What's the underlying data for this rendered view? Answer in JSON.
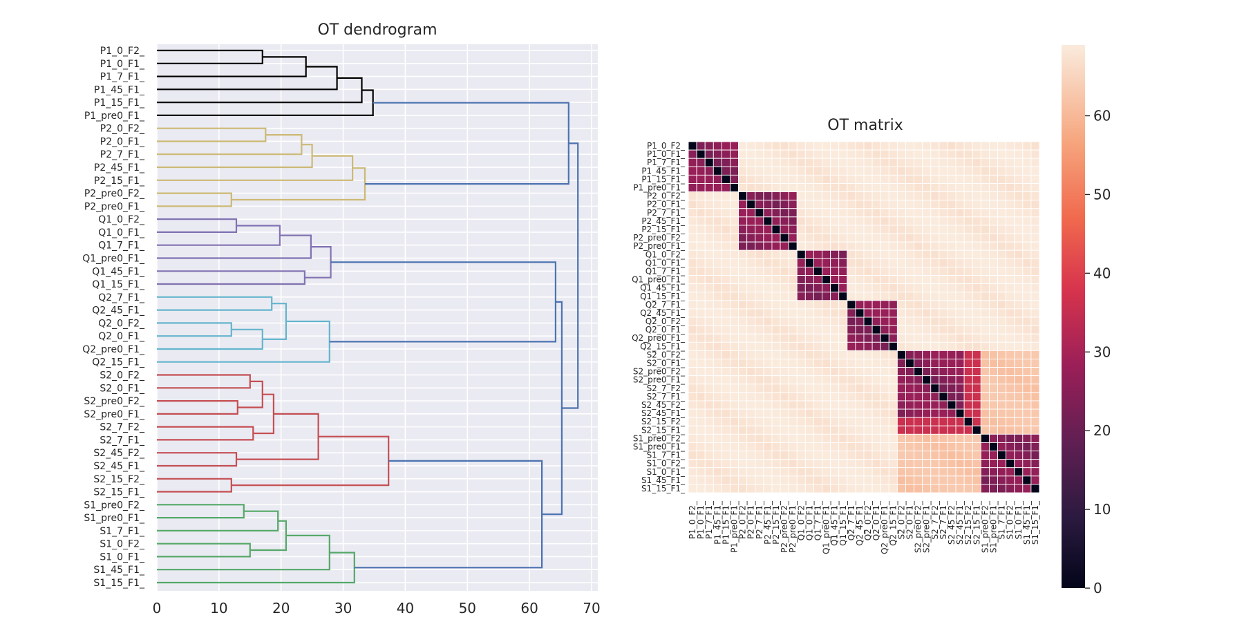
{
  "chart_data": [
    {
      "type": "dendrogram",
      "title": "OT dendrogram",
      "orientation": "right",
      "xlim": [
        0,
        71
      ],
      "xticks": [
        0,
        10,
        20,
        30,
        40,
        50,
        60,
        70
      ],
      "grid": true,
      "leaves": [
        "P1_0_F2_",
        "P1_0_F1_",
        "P1_7_F1_",
        "P1_45_F1_",
        "P1_15_F1_",
        "P1_pre0_F1_",
        "P2_0_F2_",
        "P2_0_F1_",
        "P2_7_F1_",
        "P2_45_F1_",
        "P2_15_F1_",
        "P2_pre0_F2_",
        "P2_pre0_F1_",
        "Q1_0_F2_",
        "Q1_0_F1_",
        "Q1_7_F1_",
        "Q1_pre0_F1_",
        "Q1_45_F1_",
        "Q1_15_F1_",
        "Q2_7_F1_",
        "Q2_45_F1_",
        "Q2_0_F2_",
        "Q2_0_F1_",
        "Q2_pre0_F1_",
        "Q2_15_F1_",
        "S2_0_F2_",
        "S2_0_F1_",
        "S2_pre0_F2_",
        "S2_pre0_F1_",
        "S2_7_F2_",
        "S2_7_F1_",
        "S2_45_F2_",
        "S2_45_F1_",
        "S2_15_F2_",
        "S2_15_F1_",
        "S1_pre0_F2_",
        "S1_pre0_F1_",
        "S1_7_F1_",
        "S1_0_F2_",
        "S1_0_F1_",
        "S1_45_F1_",
        "S1_15_F1_"
      ],
      "cluster_colors": [
        "#000000",
        "#ccb974",
        "#8172b2",
        "#64b5cd",
        "#c44e52",
        "#55a868",
        "#4c72b0"
      ],
      "merges": [
        {
          "a": 0,
          "b": 1,
          "h": 17.0,
          "c": 0
        },
        {
          "a": "m0",
          "b": 2,
          "h": 24.0,
          "c": 0
        },
        {
          "a": "m1",
          "b": 3,
          "h": 29.0,
          "c": 0
        },
        {
          "a": "m2",
          "b": 4,
          "h": 33.0,
          "c": 0
        },
        {
          "a": "m3",
          "b": 5,
          "h": 34.8,
          "c": 0
        },
        {
          "a": 11,
          "b": 12,
          "h": 12.0,
          "c": 1
        },
        {
          "a": 6,
          "b": 7,
          "h": 17.5,
          "c": 1
        },
        {
          "a": "m6",
          "b": 8,
          "h": 23.3,
          "c": 1
        },
        {
          "a": "m7",
          "b": 9,
          "h": 25.0,
          "c": 1
        },
        {
          "a": "m8",
          "b": 10,
          "h": 31.5,
          "c": 1
        },
        {
          "a": "m9",
          "b": "m5",
          "h": 33.5,
          "c": 1
        },
        {
          "a": 13,
          "b": 14,
          "h": 12.8,
          "c": 2
        },
        {
          "a": "m11",
          "b": 15,
          "h": 19.8,
          "c": 2
        },
        {
          "a": "m12",
          "b": 16,
          "h": 24.8,
          "c": 2
        },
        {
          "a": 17,
          "b": 18,
          "h": 23.8,
          "c": 2
        },
        {
          "a": "m13",
          "b": "m14",
          "h": 28.0,
          "c": 2
        },
        {
          "a": 21,
          "b": 22,
          "h": 12.0,
          "c": 3
        },
        {
          "a": "m16",
          "b": 23,
          "h": 17.0,
          "c": 3
        },
        {
          "a": 19,
          "b": 20,
          "h": 18.5,
          "c": 3
        },
        {
          "a": "m18",
          "b": "m17",
          "h": 20.8,
          "c": 3
        },
        {
          "a": "m19",
          "b": 24,
          "h": 27.8,
          "c": 3
        },
        {
          "a": 25,
          "b": 26,
          "h": 15.0,
          "c": 4
        },
        {
          "a": 27,
          "b": 28,
          "h": 13.0,
          "c": 4
        },
        {
          "a": "m21",
          "b": "m22",
          "h": 17.0,
          "c": 4
        },
        {
          "a": 29,
          "b": 30,
          "h": 15.5,
          "c": 4
        },
        {
          "a": "m23",
          "b": "m24",
          "h": 18.8,
          "c": 4
        },
        {
          "a": 31,
          "b": 32,
          "h": 12.8,
          "c": 4
        },
        {
          "a": "m25",
          "b": "m26",
          "h": 26.0,
          "c": 4
        },
        {
          "a": 33,
          "b": 34,
          "h": 12.0,
          "c": 4
        },
        {
          "a": "m27",
          "b": "m28",
          "h": 37.3,
          "c": 4
        },
        {
          "a": 35,
          "b": 36,
          "h": 14.0,
          "c": 5
        },
        {
          "a": "m30",
          "b": 37,
          "h": 19.5,
          "c": 5
        },
        {
          "a": 38,
          "b": 39,
          "h": 15.0,
          "c": 5
        },
        {
          "a": "m31",
          "b": "m32",
          "h": 20.8,
          "c": 5
        },
        {
          "a": "m33",
          "b": 40,
          "h": 27.8,
          "c": 5
        },
        {
          "a": "m34",
          "b": 41,
          "h": 31.8,
          "c": 5
        },
        {
          "a": "m4",
          "b": "m10",
          "h": 66.3,
          "c": 6
        },
        {
          "a": "m15",
          "b": "m20",
          "h": 64.2,
          "c": 6
        },
        {
          "a": "m29",
          "b": "m35",
          "h": 62.0,
          "c": 6
        },
        {
          "a": "m37",
          "b": "m38",
          "h": 65.2,
          "c": 6
        },
        {
          "a": "m36",
          "b": "m39",
          "h": 67.8,
          "c": 6
        }
      ]
    },
    {
      "type": "heatmap",
      "title": "OT matrix",
      "labels": [
        "P1_0_F2_",
        "P1_0_F1_",
        "P1_7_F1_",
        "P1_45_F1_",
        "P1_15_F1_",
        "P1_pre0_F1_",
        "P2_0_F2_",
        "P2_0_F1_",
        "P2_7_F1_",
        "P2_45_F1_",
        "P2_15_F1_",
        "P2_pre0_F2_",
        "P2_pre0_F1_",
        "Q1_0_F2_",
        "Q1_0_F1_",
        "Q1_7_F1_",
        "Q1_pre0_F1_",
        "Q1_45_F1_",
        "Q1_15_F1_",
        "Q2_7_F1_",
        "Q2_45_F1_",
        "Q2_0_F2_",
        "Q2_0_F1_",
        "Q2_pre0_F1_",
        "Q2_15_F1_",
        "S2_0_F2_",
        "S2_0_F1_",
        "S2_pre0_F2_",
        "S2_pre0_F1_",
        "S2_7_F2_",
        "S2_7_F1_",
        "S2_45_F2_",
        "S2_45_F1_",
        "S2_15_F2_",
        "S2_15_F1_",
        "S1_pre0_F2_",
        "S1_pre0_F1_",
        "S1_7_F1_",
        "S1_0_F2_",
        "S1_0_F1_",
        "S1_45_F1_",
        "S1_15_F1_"
      ],
      "groups": [
        [
          0,
          5
        ],
        [
          6,
          12
        ],
        [
          13,
          18
        ],
        [
          19,
          24
        ],
        [
          25,
          34
        ],
        [
          35,
          41
        ]
      ],
      "values_description_rule": {
        "diagonal": 0,
        "within_group": [
          22,
          28
        ],
        "s2_15_within": 36,
        "s1_s2_cross": 62,
        "other_cross": 68
      },
      "colorbar": {
        "min": 0,
        "max": 69,
        "ticks": [
          0,
          10,
          20,
          30,
          40,
          50,
          60
        ]
      }
    }
  ]
}
